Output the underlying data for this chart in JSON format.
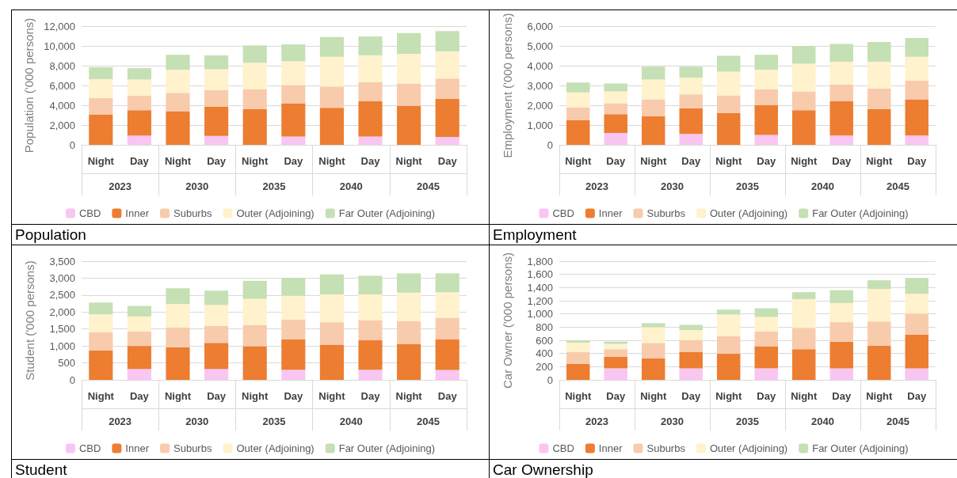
{
  "chart_data": [
    {
      "type": "bar",
      "title": "Population",
      "ylabel": "Population ('000 persons)",
      "stacked": true,
      "grid": "y",
      "legend": "bottom",
      "categories": [
        "Night",
        "Day",
        "Night",
        "Day",
        "Night",
        "Day",
        "Night",
        "Day",
        "Night",
        "Day"
      ],
      "annotations": [
        "2023",
        "2030",
        "2035",
        "2040",
        "2045"
      ],
      "ylim": [
        0,
        12000
      ],
      "yticks": [
        {
          "value": 0,
          "label": "0"
        },
        {
          "value": 2000,
          "label": "2,000"
        },
        {
          "value": 4000,
          "label": "4,000"
        },
        {
          "value": 6000,
          "label": "6,000"
        },
        {
          "value": 8000,
          "label": "8,000"
        },
        {
          "value": 10000,
          "label": "10,000"
        },
        {
          "value": 12000,
          "label": "12,000"
        }
      ],
      "series": [
        {
          "name": "CBD",
          "color": "#f9c6f2",
          "values": [
            0,
            950,
            0,
            900,
            0,
            850,
            0,
            850,
            0,
            800
          ]
        },
        {
          "name": "Inner",
          "color": "#ed7d31",
          "values": [
            3050,
            2550,
            3400,
            2950,
            3600,
            3350,
            3750,
            3550,
            3950,
            3850
          ]
        },
        {
          "name": "Suburbs",
          "color": "#f8cbad",
          "values": [
            1700,
            1450,
            1850,
            1700,
            2000,
            1850,
            2150,
            1950,
            2250,
            2050
          ]
        },
        {
          "name": "Outer (Adjoining)",
          "color": "#fff2cc",
          "values": [
            1900,
            1650,
            2350,
            2100,
            2700,
            2400,
            3000,
            2700,
            3000,
            2750
          ]
        },
        {
          "name": "Far Outer (Adjoining)",
          "color": "#c5e0b4",
          "values": [
            1200,
            1150,
            1500,
            1400,
            1750,
            1700,
            2000,
            1900,
            2100,
            2050
          ]
        }
      ]
    },
    {
      "type": "bar",
      "title": "Employment",
      "ylabel": "Employment ('000 persons)",
      "stacked": true,
      "grid": "y",
      "legend": "bottom",
      "categories": [
        "Night",
        "Day",
        "Night",
        "Day",
        "Night",
        "Day",
        "Night",
        "Day",
        "Night",
        "Day"
      ],
      "annotations": [
        "2023",
        "2030",
        "2035",
        "2040",
        "2045"
      ],
      "ylim": [
        0,
        6000
      ],
      "yticks": [
        {
          "value": 0,
          "label": "0"
        },
        {
          "value": 1000,
          "label": "1,000"
        },
        {
          "value": 2000,
          "label": "2,000"
        },
        {
          "value": 3000,
          "label": "3,000"
        },
        {
          "value": 4000,
          "label": "4,000"
        },
        {
          "value": 5000,
          "label": "5,000"
        },
        {
          "value": 6000,
          "label": "6,000"
        }
      ],
      "series": [
        {
          "name": "CBD",
          "color": "#f9c6f2",
          "values": [
            0,
            600,
            0,
            550,
            0,
            500,
            0,
            470,
            0,
            470
          ]
        },
        {
          "name": "Inner",
          "color": "#ed7d31",
          "values": [
            1250,
            950,
            1450,
            1300,
            1600,
            1500,
            1750,
            1730,
            1800,
            1830
          ]
        },
        {
          "name": "Suburbs",
          "color": "#f8cbad",
          "values": [
            650,
            550,
            850,
            700,
            900,
            800,
            950,
            850,
            1050,
            950
          ]
        },
        {
          "name": "Outer (Adjoining)",
          "color": "#fff2cc",
          "values": [
            750,
            600,
            1000,
            850,
            1200,
            1000,
            1400,
            1150,
            1350,
            1200
          ]
        },
        {
          "name": "Far Outer (Adjoining)",
          "color": "#c5e0b4",
          "values": [
            500,
            400,
            650,
            550,
            800,
            750,
            900,
            900,
            1000,
            950
          ]
        }
      ]
    },
    {
      "type": "bar",
      "title": "Student",
      "ylabel": "Student ('000 persons)",
      "stacked": true,
      "grid": "y",
      "legend": "bottom",
      "categories": [
        "Night",
        "Day",
        "Night",
        "Day",
        "Night",
        "Day",
        "Night",
        "Day",
        "Night",
        "Day"
      ],
      "annotations": [
        "2023",
        "2030",
        "2035",
        "2040",
        "2045"
      ],
      "ylim": [
        0,
        3500
      ],
      "yticks": [
        {
          "value": 0,
          "label": "0"
        },
        {
          "value": 500,
          "label": "500"
        },
        {
          "value": 1000,
          "label": "1,000"
        },
        {
          "value": 1500,
          "label": "1,500"
        },
        {
          "value": 2000,
          "label": "2,000"
        },
        {
          "value": 2500,
          "label": "2,500"
        },
        {
          "value": 3000,
          "label": "3,000"
        },
        {
          "value": 3500,
          "label": "3,500"
        }
      ],
      "series": [
        {
          "name": "CBD",
          "color": "#f9c6f2",
          "values": [
            0,
            320,
            0,
            320,
            0,
            300,
            0,
            300,
            0,
            290
          ]
        },
        {
          "name": "Inner",
          "color": "#ed7d31",
          "values": [
            870,
            680,
            960,
            770,
            990,
            890,
            1040,
            870,
            1050,
            910
          ]
        },
        {
          "name": "Suburbs",
          "color": "#f8cbad",
          "values": [
            530,
            430,
            590,
            500,
            630,
            590,
            660,
            590,
            680,
            630
          ]
        },
        {
          "name": "Outer (Adjoining)",
          "color": "#fff2cc",
          "values": [
            530,
            440,
            690,
            620,
            770,
            700,
            820,
            760,
            840,
            750
          ]
        },
        {
          "name": "Far Outer (Adjoining)",
          "color": "#c5e0b4",
          "values": [
            350,
            310,
            460,
            420,
            530,
            520,
            590,
            550,
            570,
            560
          ]
        }
      ]
    },
    {
      "type": "bar",
      "title": "Car Ownership",
      "ylabel": "Car Owner ('000 persons)",
      "stacked": true,
      "grid": "y",
      "legend": "bottom",
      "categories": [
        "Night",
        "Day",
        "Night",
        "Day",
        "Night",
        "Day",
        "Night",
        "Day",
        "Night",
        "Day"
      ],
      "annotations": [
        "2023",
        "2030",
        "2035",
        "2040",
        "2045"
      ],
      "ylim": [
        0,
        1800
      ],
      "yticks": [
        {
          "value": 0,
          "label": "0"
        },
        {
          "value": 200,
          "label": "200"
        },
        {
          "value": 400,
          "label": "400"
        },
        {
          "value": 600,
          "label": "600"
        },
        {
          "value": 800,
          "label": "800"
        },
        {
          "value": 1000,
          "label": "1,000"
        },
        {
          "value": 1200,
          "label": "1,200"
        },
        {
          "value": 1400,
          "label": "1,400"
        },
        {
          "value": 1600,
          "label": "1,600"
        },
        {
          "value": 1800,
          "label": "1,800"
        }
      ],
      "series": [
        {
          "name": "CBD",
          "color": "#f9c6f2",
          "values": [
            0,
            175,
            0,
            175,
            0,
            175,
            0,
            175,
            0,
            175
          ]
        },
        {
          "name": "Inner",
          "color": "#ed7d31",
          "values": [
            240,
            175,
            325,
            245,
            395,
            335,
            465,
            405,
            515,
            510
          ]
        },
        {
          "name": "Suburbs",
          "color": "#f8cbad",
          "values": [
            180,
            115,
            235,
            185,
            270,
            225,
            325,
            295,
            370,
            320
          ]
        },
        {
          "name": "Outer (Adjoining)",
          "color": "#fff2cc",
          "values": [
            145,
            80,
            240,
            150,
            325,
            220,
            435,
            290,
            495,
            300
          ]
        },
        {
          "name": "Far Outer (Adjoining)",
          "color": "#c5e0b4",
          "values": [
            35,
            35,
            60,
            80,
            75,
            130,
            105,
            195,
            130,
            240
          ]
        }
      ]
    }
  ]
}
